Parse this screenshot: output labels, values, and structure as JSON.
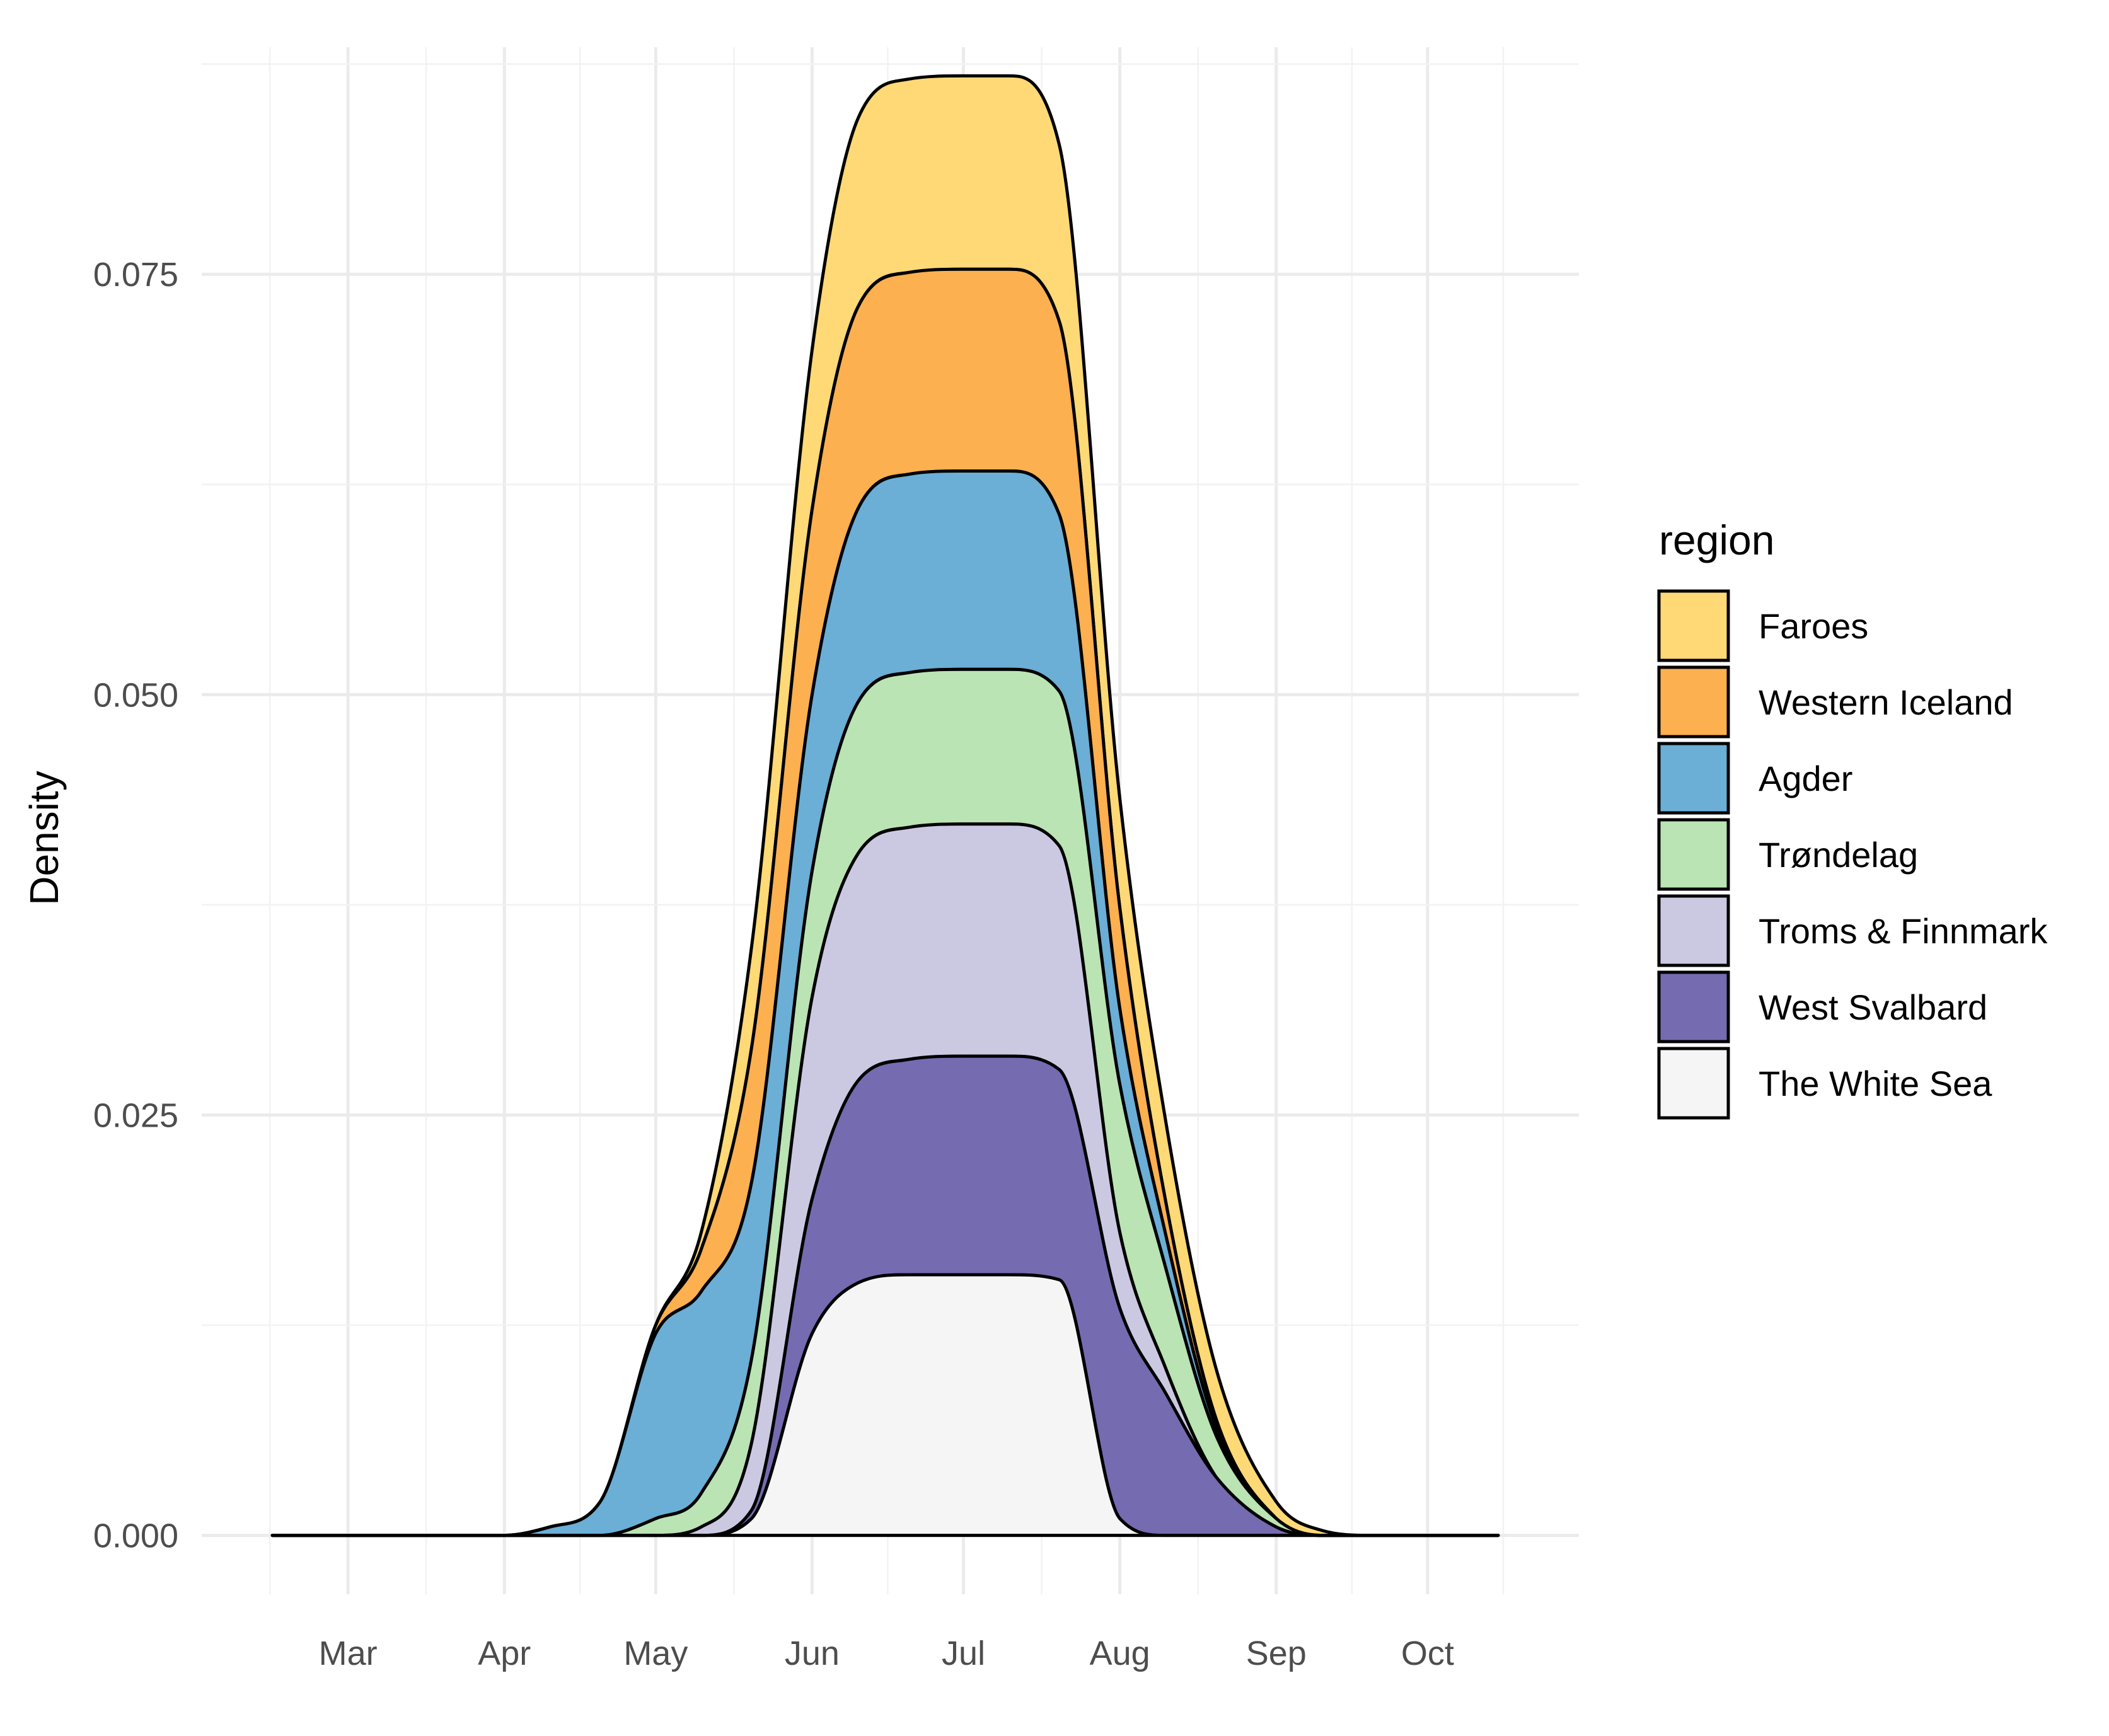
{
  "chart_data": {
    "type": "area",
    "stacked": true,
    "title": "",
    "xlabel": "",
    "ylabel": "Density",
    "x_tick_labels": [
      "Mar",
      "Apr",
      "May",
      "Jun",
      "Jul",
      "Aug",
      "Sep",
      "Oct"
    ],
    "x_ticks": [
      "2000-03-01",
      "2000-04-01",
      "2000-05-01",
      "2000-06-01",
      "2000-07-01",
      "2000-08-01",
      "2000-09-01",
      "2000-10-01"
    ],
    "xlim": [
      "2000-02-01",
      "2000-10-31"
    ],
    "y_tick_labels": [
      "0.000",
      "0.025",
      "0.050",
      "0.075"
    ],
    "y_ticks": [
      0,
      0.025,
      0.05,
      0.075
    ],
    "ylim": [
      -0.0035,
      0.0885
    ],
    "grid": true,
    "legend": {
      "title": "region",
      "position": "right"
    },
    "x": [
      "2000-02-15",
      "2000-03-15",
      "2000-04-01",
      "2000-04-10",
      "2000-04-20",
      "2000-05-01",
      "2000-05-10",
      "2000-05-20",
      "2000-06-01",
      "2000-06-10",
      "2000-06-20",
      "2000-07-01",
      "2000-07-10",
      "2000-07-20",
      "2000-08-01",
      "2000-08-10",
      "2000-08-20",
      "2000-09-01",
      "2000-09-10",
      "2000-09-20",
      "2000-10-01",
      "2000-10-15"
    ],
    "series": [
      {
        "name": "The White Sea",
        "color": "#f5f5f5",
        "values": [
          0,
          0,
          0,
          0,
          0,
          0,
          0,
          0.001,
          0.012,
          0.015,
          0.0155,
          0.0155,
          0.0155,
          0.0152,
          0.001,
          0,
          0,
          0,
          0,
          0,
          0,
          0
        ]
      },
      {
        "name": "West Svalbard",
        "color": "#756bb1",
        "values": [
          0,
          0,
          0,
          0,
          0,
          0,
          0,
          0.0005,
          0.008,
          0.012,
          0.0128,
          0.013,
          0.013,
          0.0125,
          0.0125,
          0.0085,
          0.0035,
          0.0005,
          0,
          0,
          0,
          0
        ]
      },
      {
        "name": "Troms & Finnmark",
        "color": "#cbc9e2",
        "values": [
          0,
          0,
          0,
          0,
          0,
          0,
          0.0005,
          0.004,
          0.012,
          0.0135,
          0.0138,
          0.0138,
          0.0138,
          0.0133,
          0.0045,
          0.0015,
          0,
          0,
          0,
          0,
          0,
          0
        ]
      },
      {
        "name": "Trøndelag",
        "color": "#bae4b3",
        "values": [
          0,
          0,
          0,
          0,
          0,
          0.001,
          0.002,
          0.005,
          0.0075,
          0.009,
          0.0092,
          0.0092,
          0.0092,
          0.0092,
          0.0088,
          0.006,
          0.0025,
          0.0005,
          0,
          0,
          0,
          0
        ]
      },
      {
        "name": "Agder",
        "color": "#6baed6",
        "values": [
          0,
          0,
          0,
          0.0005,
          0.002,
          0.011,
          0.012,
          0.0105,
          0.0105,
          0.0115,
          0.0118,
          0.0118,
          0.0118,
          0.0105,
          0.0045,
          0.002,
          0.0005,
          0,
          0,
          0,
          0,
          0
        ]
      },
      {
        "name": "Western Iceland",
        "color": "#fdb04f",
        "values": [
          0,
          0,
          0,
          0,
          0,
          0.0005,
          0.0025,
          0.008,
          0.011,
          0.012,
          0.012,
          0.012,
          0.012,
          0.0115,
          0.006,
          0.002,
          0.0005,
          0,
          0,
          0,
          0,
          0
        ]
      },
      {
        "name": "Faroes",
        "color": "#fed976",
        "values": [
          0,
          0,
          0,
          0,
          0,
          0,
          0.001,
          0.006,
          0.0095,
          0.0112,
          0.0115,
          0.0115,
          0.0115,
          0.0105,
          0.0065,
          0.0048,
          0.003,
          0.001,
          0.0003,
          0,
          0,
          0
        ]
      }
    ],
    "legend_order": [
      "Faroes",
      "Western Iceland",
      "Agder",
      "Trøndelag",
      "Troms & Finnmark",
      "West Svalbard",
      "The White Sea"
    ]
  }
}
